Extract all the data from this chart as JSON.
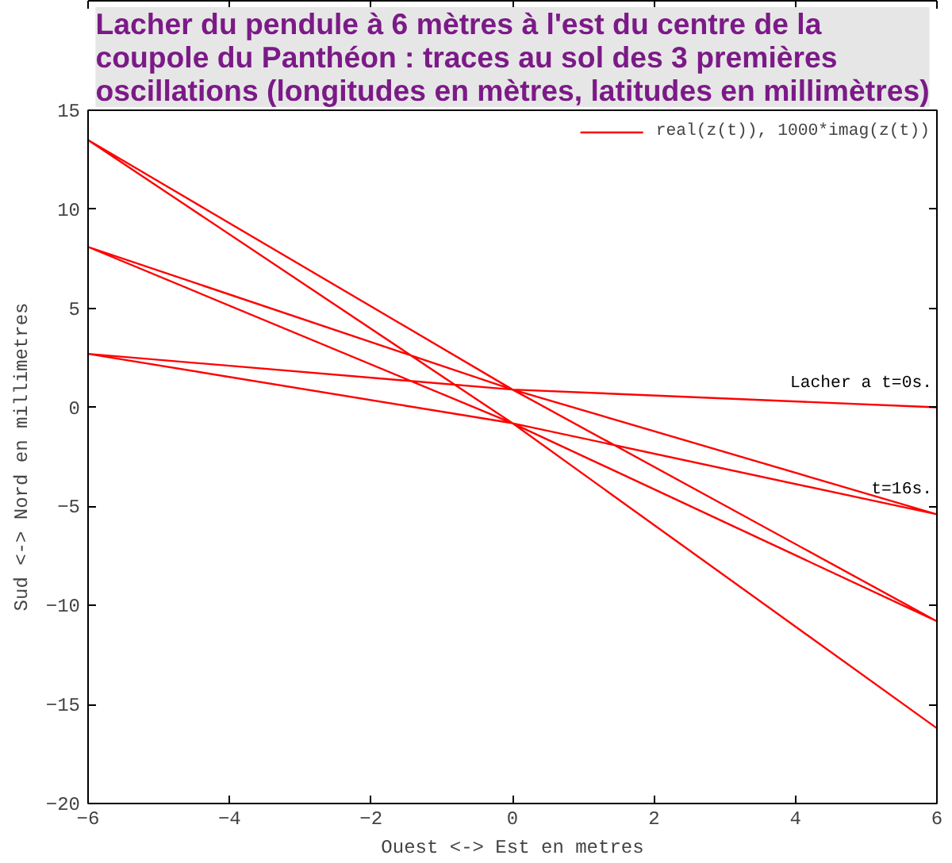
{
  "chart_data": {
    "type": "line",
    "title": "Lacher du pendule à 6 mètres à l'est du centre de la\ncoupole du Panthéon : traces au sol des 3 premières\noscillations (longitudes en mètres, latitudes en millimètres)",
    "xlabel": "Ouest <-> Est en metres",
    "ylabel": "Sud <-> Nord en millimetres",
    "x": [
      6,
      0,
      -6,
      0,
      6,
      0,
      -6,
      0,
      6,
      0,
      -6,
      0,
      6
    ],
    "series": [
      {
        "name": "real(z(t)), 1000*imag(z(t))",
        "color": "#ff0000",
        "values": [
          0,
          0.9,
          2.7,
          -0.8,
          -5.4,
          0.9,
          8.1,
          -0.8,
          -10.8,
          0.9,
          13.5,
          -0.8,
          -16.2
        ]
      }
    ],
    "xlim": [
      -6,
      6
    ],
    "ylim": [
      -20,
      15
    ],
    "xticks": [
      -6,
      -4,
      -2,
      0,
      2,
      4,
      6
    ],
    "yticks": [
      -20,
      -15,
      -10,
      -5,
      0,
      5,
      10,
      15
    ],
    "annotations": [
      {
        "text": "Lacher a t=0s.",
        "x": 6,
        "y": 0
      },
      {
        "text": "t=16s.",
        "x": 6,
        "y": -5.4
      }
    ],
    "grid": false,
    "legend": "top right",
    "marker": "none",
    "line_style": "solid"
  }
}
